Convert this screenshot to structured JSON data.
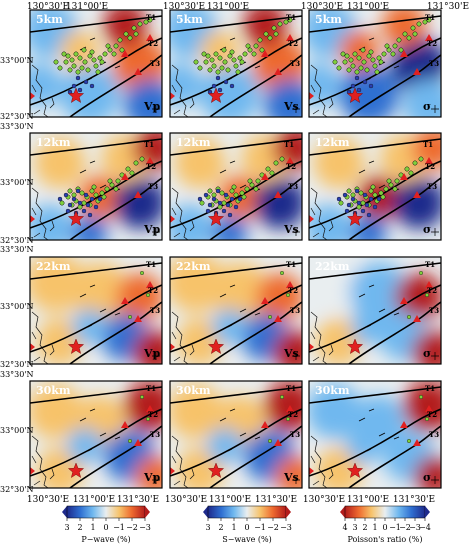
{
  "columns": [
    {
      "id": "vp",
      "param": "Vp",
      "legend": {
        "ticks": [
          "3",
          "2",
          "1",
          "0",
          "−1",
          "−2",
          "−3"
        ],
        "label": "P−wave (%)"
      }
    },
    {
      "id": "vs",
      "param": "Vs",
      "legend": {
        "ticks": [
          "3",
          "2",
          "1",
          "0",
          "−1",
          "−2",
          "−3"
        ],
        "label": "S−wave (%)"
      }
    },
    {
      "id": "pr",
      "param": "σ",
      "legend": {
        "ticks": [
          "4",
          "3",
          "2",
          "1",
          "0",
          "−1",
          "−2",
          "−3",
          "−4"
        ],
        "label": "Poisson's ratio (%)"
      }
    }
  ],
  "depths": [
    "5km",
    "12km",
    "22km",
    "30km"
  ],
  "fault_labels": [
    "T1",
    "T2",
    "T3"
  ],
  "lon_ticks": [
    "130°30'E",
    "131°00'E",
    "131°30'E"
  ],
  "lat_ticks": [
    "33°30'N",
    "33°00'N",
    "32°30'N"
  ],
  "colors": {
    "colormap_vel": [
      "#1e2a8c",
      "#2f6fd1",
      "#6fb8ef",
      "#e9eef0",
      "#f7c36b",
      "#ee6a2f",
      "#b31c1c"
    ],
    "colormap_pr": [
      "#b31c1c",
      "#ee6a2f",
      "#f7c36b",
      "#e9eef0",
      "#6fb8ef",
      "#2f6fd1",
      "#1e2a8c"
    ],
    "star": "#e02020",
    "volcano": "#e02020",
    "event_shallow": "#7fd03c",
    "event_deep": "#2a3fb0"
  }
}
